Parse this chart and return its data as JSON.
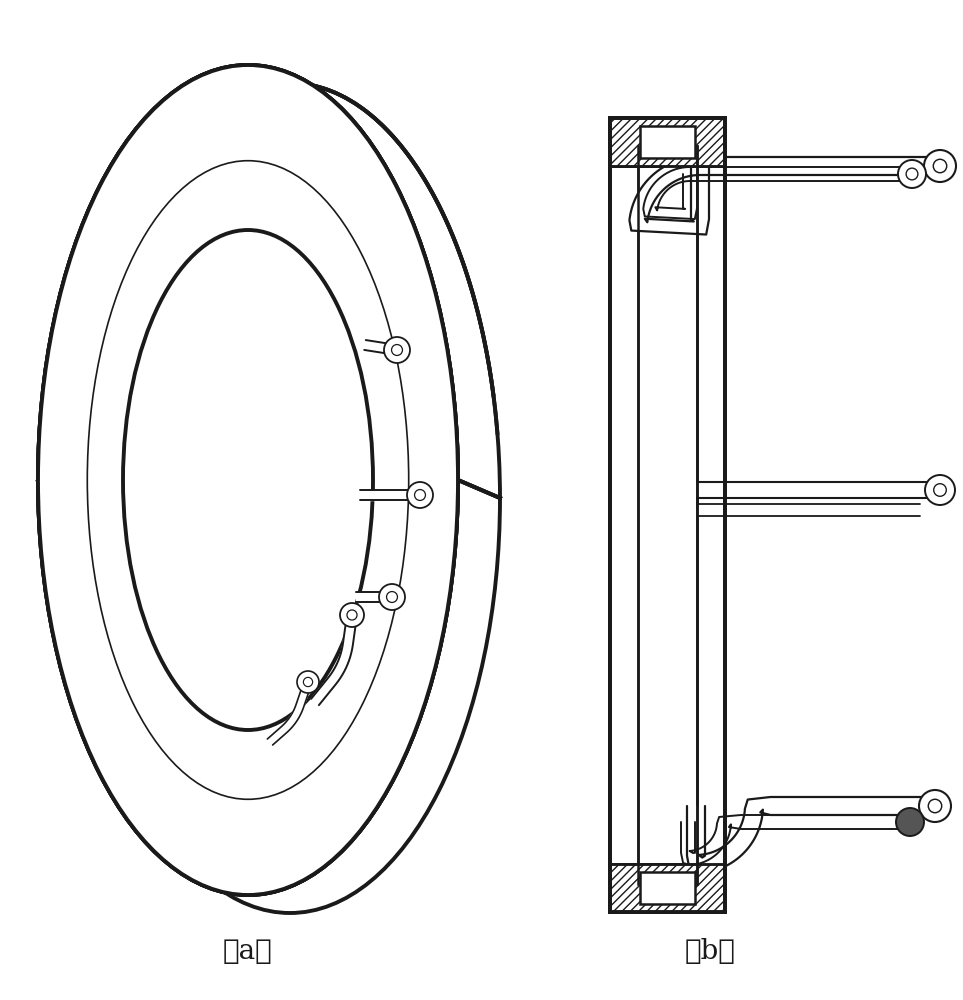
{
  "fig_width": 9.63,
  "fig_height": 10.0,
  "dpi": 100,
  "bg_color": "#ffffff",
  "line_color": "#1a1a1a",
  "label_a": "（a）",
  "label_b": "（b）",
  "label_fontsize": 20,
  "lw_thick": 2.8,
  "lw_med": 1.8,
  "lw_thin": 1.2
}
